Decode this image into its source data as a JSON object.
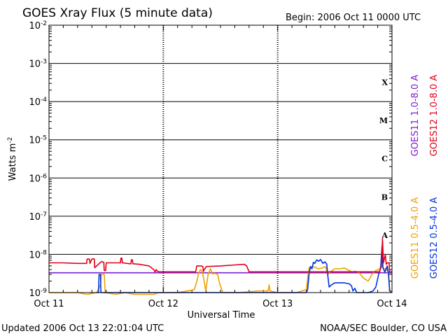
{
  "header": {
    "title": "GOES Xray Flux (5 minute data)",
    "begin": "Begin:  2006 Oct 11 0000 UTC"
  },
  "footer": {
    "updated": "Updated 2006 Oct 13 22:01:04 UTC",
    "credit": "NOAA/SEC Boulder, CO USA"
  },
  "colors": {
    "goes11_long": "#7b1fd0",
    "goes12_long": "#e0001a",
    "goes11_short": "#f0a000",
    "goes12_short": "#0033dd"
  },
  "chart_data": {
    "type": "line",
    "title": "GOES Xray Flux (5 minute data)",
    "xlabel": "Universal Time",
    "ylabel": "Watts m",
    "ylabel_exp": "-2",
    "y_scale": "log",
    "ylim": [
      1e-09,
      0.01
    ],
    "xlim": [
      0,
      72
    ],
    "x_unit": "hours since 2006 Oct 11 0000 UTC",
    "x_ticks": [
      {
        "x": 0,
        "label": "Oct 11"
      },
      {
        "x": 24,
        "label": "Oct 12"
      },
      {
        "x": 48,
        "label": "Oct 13"
      },
      {
        "x": 72,
        "label": "Oct 14"
      }
    ],
    "y_ticks": [
      {
        "value": 0.01,
        "base": "10",
        "exp": "-2"
      },
      {
        "value": 0.001,
        "base": "10",
        "exp": "-3"
      },
      {
        "value": 0.0001,
        "base": "10",
        "exp": "-4"
      },
      {
        "value": 1e-05,
        "base": "10",
        "exp": "-5"
      },
      {
        "value": 1e-06,
        "base": "10",
        "exp": "-6"
      },
      {
        "value": 1e-07,
        "base": "10",
        "exp": "-7"
      },
      {
        "value": 1e-08,
        "base": "10",
        "exp": "-8"
      },
      {
        "value": 1e-09,
        "base": "10",
        "exp": "-9"
      }
    ],
    "flare_classes": [
      {
        "label": "X",
        "value": 0.00032
      },
      {
        "label": "M",
        "value": 3.2e-05
      },
      {
        "label": "C",
        "value": 3.2e-06
      },
      {
        "label": "B",
        "value": 3.2e-07
      },
      {
        "label": "A",
        "value": 3.2e-08
      }
    ],
    "grid": true,
    "legend": [
      {
        "text": "GOES11 1.0-8.0 A",
        "color": "#7b1fd0",
        "group": "long"
      },
      {
        "text": "GOES12 1.0-8.0 A",
        "color": "#e0001a",
        "group": "long"
      },
      {
        "text": "GOES11 0.5-4.0 A",
        "color": "#f0a000",
        "group": "short"
      },
      {
        "text": "GOES12 0.5-4.0 A",
        "color": "#0033dd",
        "group": "short"
      }
    ],
    "series": [
      {
        "key": "goes11_long",
        "color": "#7b1fd0",
        "points": [
          [
            0,
            3.3e-09
          ],
          [
            12,
            3.3e-09
          ],
          [
            24,
            3.3e-09
          ],
          [
            36,
            3.3e-09
          ],
          [
            48,
            3.3e-09
          ],
          [
            60,
            3.3e-09
          ],
          [
            72,
            3.3e-09
          ]
        ]
      },
      {
        "key": "goes12_long",
        "color": "#e0001a",
        "points": [
          [
            0,
            6e-09
          ],
          [
            3,
            6e-09
          ],
          [
            6,
            5.8e-09
          ],
          [
            7.9,
            5.8e-09
          ],
          [
            8.0,
            7.5e-09
          ],
          [
            8.5,
            7.5e-09
          ],
          [
            8.6,
            5.8e-09
          ],
          [
            9.0,
            7.6e-09
          ],
          [
            9.5,
            7.6e-09
          ],
          [
            9.6,
            4.5e-09
          ],
          [
            10,
            5e-09
          ],
          [
            11,
            6.5e-09
          ],
          [
            11.5,
            6.2e-09
          ],
          [
            11.6,
            3.8e-09
          ],
          [
            11.9,
            3.8e-09
          ],
          [
            12.0,
            6e-09
          ],
          [
            14,
            6e-09
          ],
          [
            15.0,
            6e-09
          ],
          [
            15.1,
            8e-09
          ],
          [
            15.3,
            8e-09
          ],
          [
            15.4,
            6e-09
          ],
          [
            17,
            5.7e-09
          ],
          [
            17.2,
            5.7e-09
          ],
          [
            17.3,
            7.2e-09
          ],
          [
            17.5,
            7.2e-09
          ],
          [
            17.6,
            5.7e-09
          ],
          [
            19,
            5.5e-09
          ],
          [
            21,
            5e-09
          ],
          [
            22,
            4e-09
          ],
          [
            22.3,
            3.4e-09
          ],
          [
            22.5,
            4e-09
          ],
          [
            22.8,
            3.6e-09
          ],
          [
            23.2,
            3.5e-09
          ],
          [
            25,
            3.5e-09
          ],
          [
            28,
            3.5e-09
          ],
          [
            30,
            3.5e-09
          ],
          [
            30.8,
            3.5e-09
          ],
          [
            31.0,
            5e-09
          ],
          [
            32,
            5e-09
          ],
          [
            32.3,
            4.8e-09
          ],
          [
            32.4,
            3.6e-09
          ],
          [
            33,
            4.8e-09
          ],
          [
            36,
            5e-09
          ],
          [
            39,
            5.3e-09
          ],
          [
            41,
            5.5e-09
          ],
          [
            41.5,
            5e-09
          ],
          [
            42,
            3.5e-09
          ],
          [
            48,
            3.5e-09
          ],
          [
            54,
            3.5e-09
          ],
          [
            58,
            3.5e-09
          ],
          [
            63,
            3.5e-09
          ],
          [
            68,
            3.5e-09
          ],
          [
            69.4,
            3.5e-09
          ],
          [
            69.8,
            5e-09
          ],
          [
            70.0,
            2.6e-08
          ],
          [
            70.2,
            6e-09
          ],
          [
            70.6,
            1e-08
          ],
          [
            70.8,
            5.5e-09
          ],
          [
            71,
            6e-09
          ],
          [
            71.4,
            6e-09
          ],
          [
            71.5,
            3.5e-09
          ],
          [
            72,
            3.5e-09
          ]
        ]
      },
      {
        "key": "goes11_short",
        "color": "#f0a000",
        "points": [
          [
            0,
            1e-09
          ],
          [
            3,
            1e-09
          ],
          [
            6,
            1e-09
          ],
          [
            8,
            9e-10
          ],
          [
            10,
            1e-09
          ],
          [
            10.8,
            1.6e-09
          ],
          [
            11.0,
            3e-09
          ],
          [
            11.6,
            3e-09
          ],
          [
            11.8,
            1e-09
          ],
          [
            14,
            9e-10
          ],
          [
            16,
            1e-09
          ],
          [
            18,
            9e-10
          ],
          [
            22,
            9e-10
          ],
          [
            23,
            1e-09
          ],
          [
            24,
            1e-09
          ],
          [
            27,
            1e-09
          ],
          [
            29,
            1.1e-09
          ],
          [
            30.5,
            1.2e-09
          ],
          [
            31,
            1.9e-09
          ],
          [
            31.4,
            3.2e-09
          ],
          [
            31.8,
            4e-09
          ],
          [
            32.2,
            3.5e-09
          ],
          [
            32.6,
            1.9e-09
          ],
          [
            32.9,
            1.1e-09
          ],
          [
            33.4,
            3e-09
          ],
          [
            33.9,
            4.2e-09
          ],
          [
            34.3,
            3.1e-09
          ],
          [
            34.8,
            3.2e-09
          ],
          [
            35.4,
            3e-09
          ],
          [
            35.9,
            1.6e-09
          ],
          [
            36.5,
            1e-09
          ],
          [
            40,
            1e-09
          ],
          [
            44,
            1.1e-09
          ],
          [
            46.0,
            1.1e-09
          ],
          [
            46.2,
            1.6e-09
          ],
          [
            46.4,
            1.1e-09
          ],
          [
            48,
            1e-09
          ],
          [
            52,
            1e-09
          ],
          [
            54,
            1.2e-09
          ],
          [
            54.6,
            4.5e-09
          ],
          [
            55.4,
            4.8e-09
          ],
          [
            56.6,
            4.2e-09
          ],
          [
            57.3,
            4.4e-09
          ],
          [
            58,
            4.8e-09
          ],
          [
            58.6,
            3e-09
          ],
          [
            59.2,
            3.6e-09
          ],
          [
            60.0,
            4.2e-09
          ],
          [
            61.0,
            4.2e-09
          ],
          [
            62.0,
            4.4e-09
          ],
          [
            63,
            3.8e-09
          ],
          [
            63.6,
            3.5e-09
          ],
          [
            64.4,
            3.6e-09
          ],
          [
            65,
            3.4e-09
          ],
          [
            66.0,
            2.4e-09
          ],
          [
            67,
            2e-09
          ],
          [
            67.8,
            3e-09
          ],
          [
            68.6,
            3.8e-09
          ],
          [
            69.2,
            4e-09
          ],
          [
            69.8,
            5e-09
          ],
          [
            70.4,
            4e-09
          ],
          [
            70.8,
            4.4e-09
          ],
          [
            71.2,
            3.2e-09
          ],
          [
            71.5,
            1.2e-09
          ],
          [
            72,
            1e-09
          ]
        ]
      },
      {
        "key": "goes12_short",
        "color": "#0033dd",
        "points": [
          [
            10,
            1e-09
          ],
          [
            10.4,
            1e-09
          ],
          [
            10.5,
            3e-09
          ],
          [
            10.8,
            3e-09
          ],
          [
            10.9,
            1e-09
          ],
          [
            11.1,
            1e-09
          ],
          [
            54.0,
            1e-09
          ],
          [
            54.3,
            1.2e-09
          ],
          [
            54.6,
            3.2e-09
          ],
          [
            54.9,
            4.8e-09
          ],
          [
            55.2,
            4.2e-09
          ],
          [
            55.5,
            6.2e-09
          ],
          [
            55.8,
            5.8e-09
          ],
          [
            56.2,
            7.2e-09
          ],
          [
            56.6,
            6.6e-09
          ],
          [
            57.0,
            7.4e-09
          ],
          [
            57.5,
            5.8e-09
          ],
          [
            57.9,
            6.4e-09
          ],
          [
            58.3,
            5.6e-09
          ],
          [
            58.5,
            3e-09
          ],
          [
            58.8,
            1.4e-09
          ],
          [
            59.3,
            1.6e-09
          ],
          [
            60.0,
            1.8e-09
          ],
          [
            61,
            1.8e-09
          ],
          [
            62,
            1.8e-09
          ],
          [
            63.0,
            1.7e-09
          ],
          [
            63.5,
            1.5e-09
          ],
          [
            63.8,
            1.1e-09
          ],
          [
            64.2,
            1.3e-09
          ],
          [
            64.6,
            1e-09
          ],
          [
            67.0,
            1e-09
          ],
          [
            68,
            1.1e-09
          ],
          [
            68.6,
            1.4e-09
          ],
          [
            69.2,
            3e-09
          ],
          [
            69.6,
            4.2e-09
          ],
          [
            69.9,
            1.6e-08
          ],
          [
            70.1,
            4.5e-09
          ],
          [
            70.5,
            3.4e-09
          ],
          [
            71.0,
            5e-09
          ],
          [
            71.3,
            3e-09
          ],
          [
            71.5,
            1.1e-09
          ],
          [
            72,
            1e-09
          ]
        ]
      }
    ]
  }
}
